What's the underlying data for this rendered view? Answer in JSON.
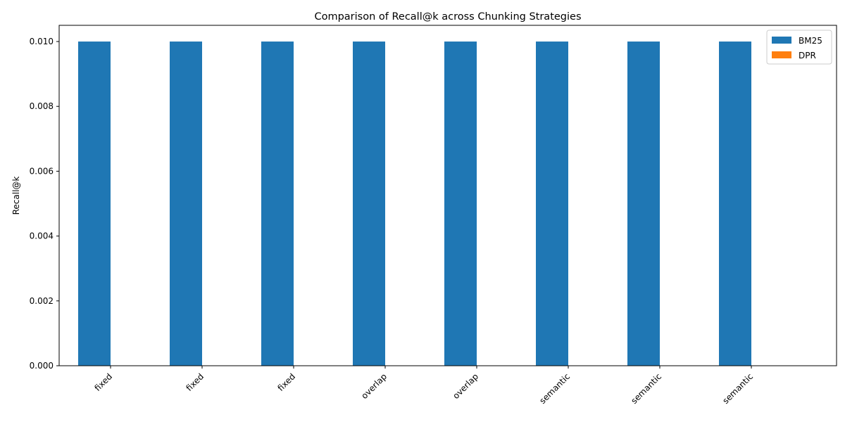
{
  "chart_data": {
    "type": "bar",
    "title": "Comparison of Recall@k across Chunking Strategies",
    "xlabel": "",
    "ylabel": "Recall@k",
    "categories": [
      "fixed",
      "fixed",
      "fixed",
      "overlap",
      "overlap",
      "semantic",
      "semantic",
      "semantic"
    ],
    "series": [
      {
        "name": "BM25",
        "color": "#1f77b4",
        "values": [
          0.01,
          0.01,
          0.01,
          0.01,
          0.01,
          0.01,
          0.01,
          0.01
        ]
      },
      {
        "name": "DPR",
        "color": "#ff7f0e",
        "values": [
          0,
          0,
          0,
          0,
          0,
          0,
          0,
          0
        ]
      }
    ],
    "ylim": [
      0,
      0.0105
    ],
    "yticks": [
      "0.000",
      "0.002",
      "0.004",
      "0.006",
      "0.008",
      "0.010"
    ],
    "ytick_values": [
      0,
      0.002,
      0.004,
      0.006,
      0.008,
      0.01
    ],
    "grid": false,
    "legend_position": "top-right"
  }
}
